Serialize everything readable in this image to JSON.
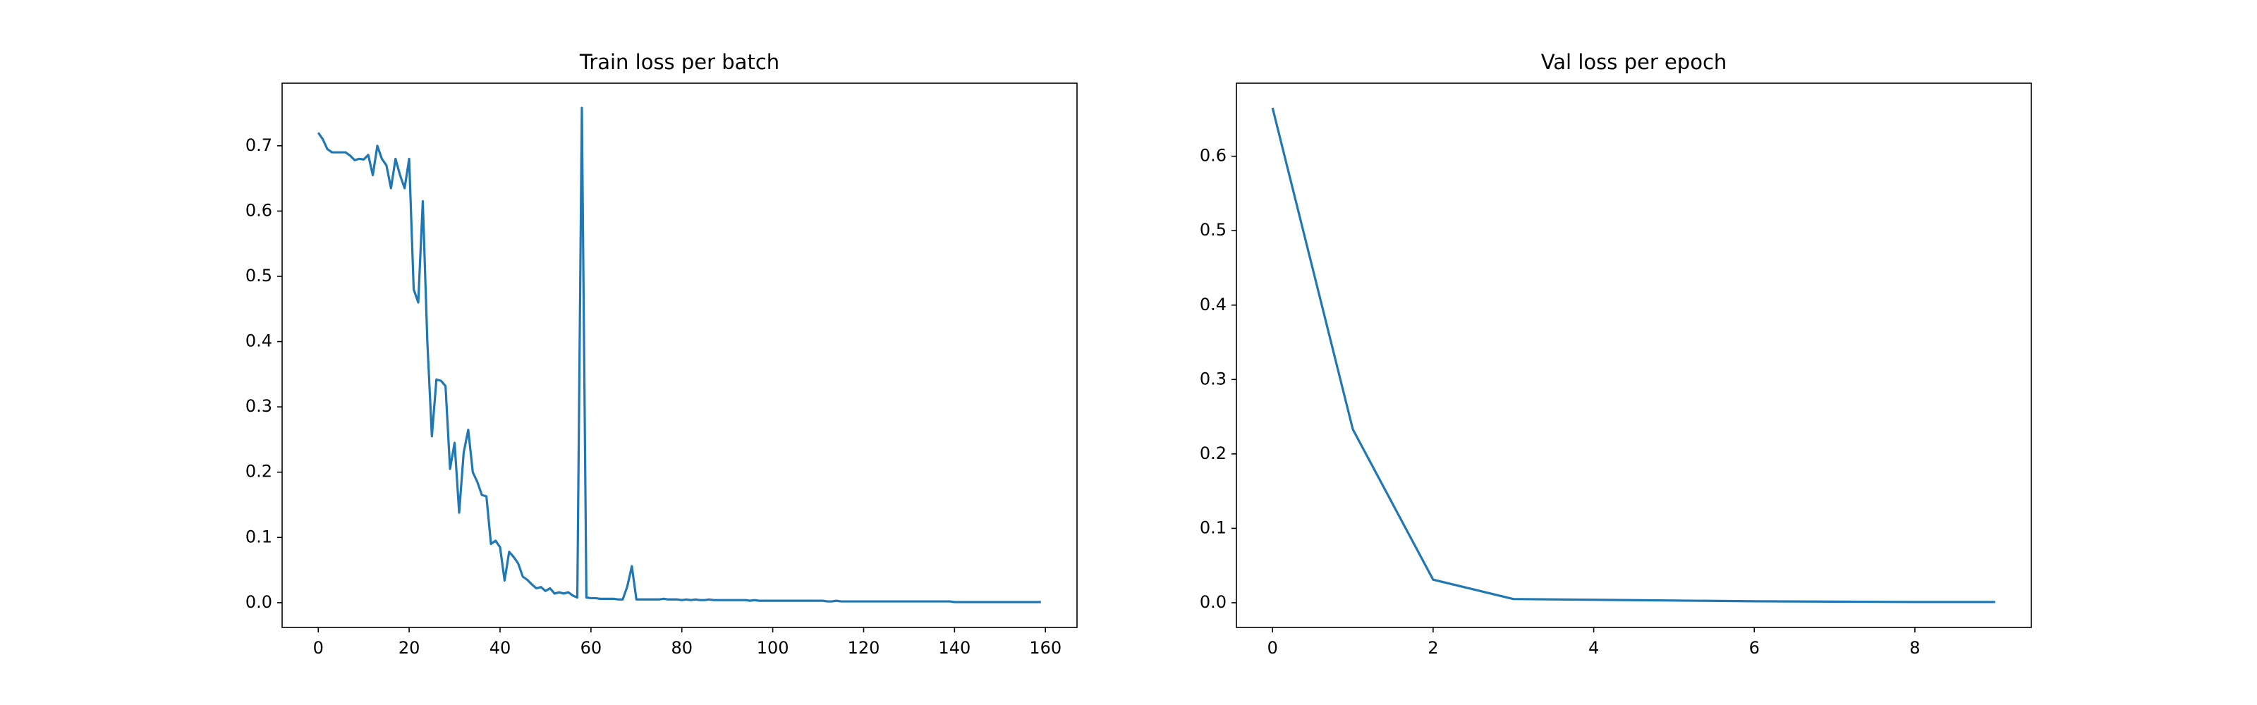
{
  "chart_data": [
    {
      "type": "line",
      "title": "Train loss per batch",
      "x": [
        0,
        1,
        2,
        3,
        4,
        5,
        6,
        7,
        8,
        9,
        10,
        11,
        12,
        13,
        14,
        15,
        16,
        17,
        18,
        19,
        20,
        21,
        22,
        23,
        24,
        25,
        26,
        27,
        28,
        29,
        30,
        31,
        32,
        33,
        34,
        35,
        36,
        37,
        38,
        39,
        40,
        41,
        42,
        43,
        44,
        45,
        46,
        47,
        48,
        49,
        50,
        51,
        52,
        53,
        54,
        55,
        56,
        57,
        58,
        59,
        60,
        61,
        62,
        63,
        64,
        65,
        66,
        67,
        68,
        69,
        70,
        71,
        72,
        73,
        74,
        75,
        76,
        77,
        78,
        79,
        80,
        81,
        82,
        83,
        84,
        85,
        86,
        87,
        88,
        89,
        90,
        91,
        92,
        93,
        94,
        95,
        96,
        97,
        98,
        99,
        100,
        101,
        102,
        103,
        104,
        105,
        106,
        107,
        108,
        109,
        110,
        111,
        112,
        113,
        114,
        115,
        116,
        117,
        118,
        119,
        120,
        121,
        122,
        123,
        124,
        125,
        126,
        127,
        128,
        129,
        130,
        131,
        132,
        133,
        134,
        135,
        136,
        137,
        138,
        139,
        140,
        141,
        142,
        143,
        144,
        145,
        146,
        147,
        148,
        149,
        150,
        151,
        152,
        153,
        154,
        155,
        156,
        157,
        158,
        159
      ],
      "values": [
        0.72,
        0.71,
        0.695,
        0.69,
        0.69,
        0.69,
        0.69,
        0.685,
        0.678,
        0.68,
        0.679,
        0.686,
        0.655,
        0.7,
        0.68,
        0.67,
        0.635,
        0.68,
        0.655,
        0.635,
        0.68,
        0.48,
        0.46,
        0.615,
        0.4,
        0.255,
        0.342,
        0.34,
        0.332,
        0.205,
        0.245,
        0.138,
        0.23,
        0.265,
        0.2,
        0.185,
        0.165,
        0.163,
        0.09,
        0.095,
        0.085,
        0.034,
        0.078,
        0.07,
        0.06,
        0.04,
        0.035,
        0.028,
        0.022,
        0.024,
        0.018,
        0.022,
        0.014,
        0.016,
        0.014,
        0.016,
        0.011,
        0.008,
        0.758,
        0.008,
        0.007,
        0.007,
        0.006,
        0.006,
        0.006,
        0.006,
        0.005,
        0.005,
        0.025,
        0.056,
        0.005,
        0.005,
        0.005,
        0.005,
        0.005,
        0.005,
        0.006,
        0.005,
        0.005,
        0.005,
        0.004,
        0.005,
        0.004,
        0.005,
        0.004,
        0.004,
        0.005,
        0.004,
        0.004,
        0.004,
        0.004,
        0.004,
        0.004,
        0.004,
        0.004,
        0.003,
        0.004,
        0.003,
        0.003,
        0.003,
        0.003,
        0.003,
        0.003,
        0.003,
        0.003,
        0.003,
        0.003,
        0.003,
        0.003,
        0.003,
        0.003,
        0.003,
        0.002,
        0.002,
        0.003,
        0.002,
        0.002,
        0.002,
        0.002,
        0.002,
        0.002,
        0.002,
        0.002,
        0.002,
        0.002,
        0.002,
        0.002,
        0.002,
        0.002,
        0.002,
        0.002,
        0.002,
        0.002,
        0.002,
        0.002,
        0.002,
        0.002,
        0.002,
        0.002,
        0.002,
        0.001,
        0.001,
        0.001,
        0.001,
        0.001,
        0.001,
        0.001,
        0.001,
        0.001,
        0.001,
        0.001,
        0.001,
        0.001,
        0.001,
        0.001,
        0.001,
        0.001,
        0.001,
        0.001,
        0.001
      ],
      "color": "#1f77b4",
      "xlim": [
        -7.95,
        166.95
      ],
      "xticks": [
        0,
        20,
        40,
        60,
        80,
        100,
        120,
        140,
        160
      ],
      "ylim": [
        -0.0379,
        0.7959
      ],
      "yticks": [
        {
          "value": 0,
          "label": "0.0"
        },
        0.1,
        0.2,
        0.3,
        0.4,
        0.5,
        0.6,
        0.7
      ]
    },
    {
      "type": "line",
      "title": "Val loss per epoch",
      "x": [
        0,
        1,
        2,
        3,
        4,
        5,
        6,
        7,
        8,
        9
      ],
      "values": [
        0.665,
        0.233,
        0.031,
        0.005,
        0.004,
        0.003,
        0.002,
        0.0015,
        0.001,
        0.001
      ],
      "color": "#1f77b4",
      "xlim": [
        -0.45,
        9.45
      ],
      "xticks": [
        0,
        2,
        4,
        6,
        8
      ],
      "ylim": [
        -0.0332,
        0.6982
      ],
      "yticks": [
        {
          "value": 0,
          "label": "0.0"
        },
        0.1,
        0.2,
        0.3,
        0.4,
        0.5,
        0.6
      ]
    }
  ]
}
